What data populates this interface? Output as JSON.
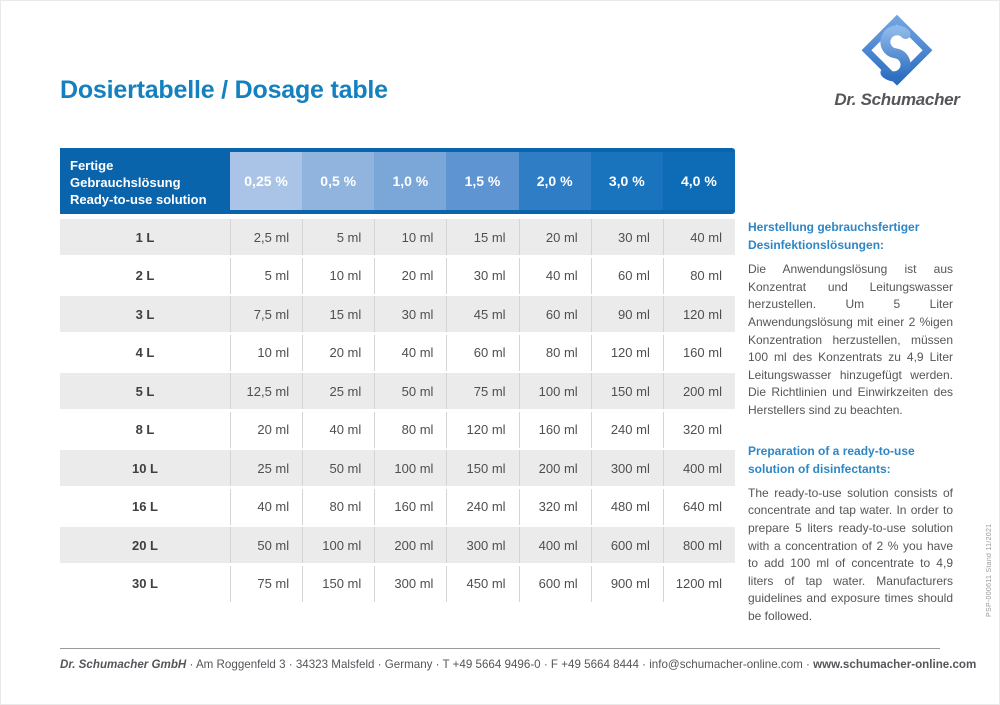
{
  "page": {
    "title": "Dosiertabelle / Dosage table"
  },
  "brand": {
    "name": "Dr. Schumacher",
    "logo_icon": "diamond-s-logo",
    "logo_color": "#3f7fd0"
  },
  "colors": {
    "title_blue": "#1580c0",
    "header_dark_blue": "#0a64ac",
    "sidebar_heading_blue": "#2e86c5",
    "row_gray": "#ebebeb",
    "text_gray": "#55565a"
  },
  "table": {
    "header": {
      "label": "Fertige\nGebrauchslösung\nReady-to-use solution",
      "columns": [
        {
          "label": "0,25 %",
          "color": "#a9c4e6"
        },
        {
          "label": "0,5 %",
          "color": "#90b4de"
        },
        {
          "label": "1,0 %",
          "color": "#7ba6d8"
        },
        {
          "label": "1,5 %",
          "color": "#5e94d1"
        },
        {
          "label": "2,0 %",
          "color": "#2f7dc5"
        },
        {
          "label": "3,0 %",
          "color": "#1973bd"
        },
        {
          "label": "4,0 %",
          "color": "#0d6cb5"
        }
      ]
    },
    "rows": [
      {
        "label": "1 L",
        "values": [
          "2,5 ml",
          "5 ml",
          "10 ml",
          "15 ml",
          "20 ml",
          "30 ml",
          "40 ml"
        ]
      },
      {
        "label": "2 L",
        "values": [
          "5 ml",
          "10 ml",
          "20 ml",
          "30 ml",
          "40 ml",
          "60 ml",
          "80 ml"
        ]
      },
      {
        "label": "3 L",
        "values": [
          "7,5 ml",
          "15 ml",
          "30 ml",
          "45 ml",
          "60 ml",
          "90 ml",
          "120 ml"
        ]
      },
      {
        "label": "4 L",
        "values": [
          "10 ml",
          "20 ml",
          "40 ml",
          "60 ml",
          "80 ml",
          "120 ml",
          "160 ml"
        ]
      },
      {
        "label": "5 L",
        "values": [
          "12,5 ml",
          "25 ml",
          "50 ml",
          "75 ml",
          "100 ml",
          "150 ml",
          "200 ml"
        ]
      },
      {
        "label": "8 L",
        "values": [
          "20 ml",
          "40 ml",
          "80 ml",
          "120 ml",
          "160 ml",
          "240 ml",
          "320 ml"
        ]
      },
      {
        "label": "10 L",
        "values": [
          "25 ml",
          "50 ml",
          "100 ml",
          "150 ml",
          "200 ml",
          "300 ml",
          "400 ml"
        ]
      },
      {
        "label": "16 L",
        "values": [
          "40 ml",
          "80 ml",
          "160 ml",
          "240 ml",
          "320 ml",
          "480 ml",
          "640 ml"
        ]
      },
      {
        "label": "20 L",
        "values": [
          "50 ml",
          "100 ml",
          "200 ml",
          "300 ml",
          "400 ml",
          "600 ml",
          "800 ml"
        ]
      },
      {
        "label": "30 L",
        "values": [
          "75 ml",
          "150 ml",
          "300 ml",
          "450 ml",
          "600 ml",
          "900 ml",
          "1200 ml"
        ]
      }
    ]
  },
  "sidebar": {
    "de": {
      "heading": "Herstellung gebrauchsfertiger Desinfektionslösungen:",
      "body": "Die Anwendungslösung ist aus Konzentrat und Leitungswasser herzustellen. Um 5 Liter Anwendungslösung mit einer 2 %igen Konzentration herzustellen, müssen 100 ml des Konzentrats zu 4,9 Liter Leitungswasser hinzugefügt werden. Die Richtlinien und Einwirkzeiten des Herstellers sind zu beachten."
    },
    "en": {
      "heading": "Preparation of a ready-to-use solution of disinfectants:",
      "body": "The ready-to-use solution consists of concentrate and tap water. In order to prepare 5 liters ready-to-use solution with a concentration of 2 % you have to add 100 ml of concentrate to 4,9 liters of tap water. Manufacturers guidelines and exposure times should be followed."
    }
  },
  "side_note": "PSP-000611    Stand 11/2021",
  "footer": {
    "company": "Dr. Schumacher GmbH",
    "middle": " · Am Roggenfeld 3 · 34323 Malsfeld · Germany · T +49 5664 9496-0 · F +49 5664 8444 · info@schumacher-online.com · ",
    "website": "www.schumacher-online.com"
  }
}
